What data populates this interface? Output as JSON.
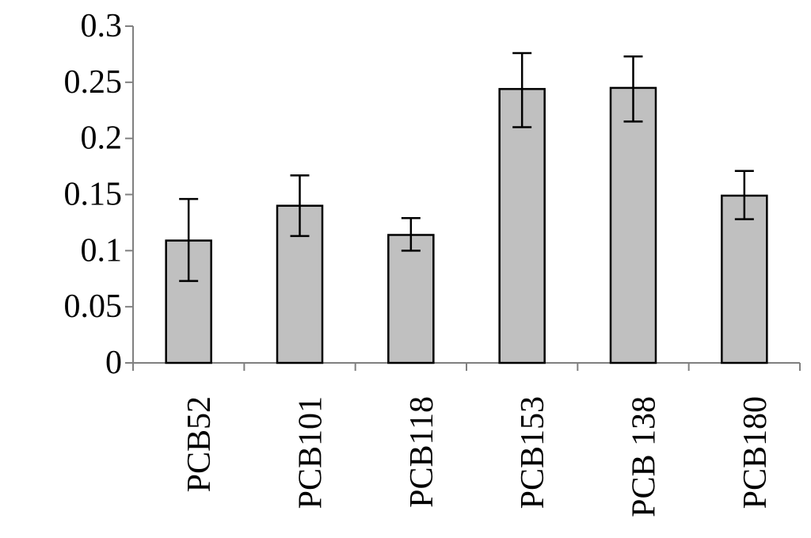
{
  "chart_data": {
    "type": "bar",
    "title": "",
    "xlabel": "",
    "ylabel": "",
    "categories": [
      "PCB52",
      "PCB101",
      "PCB118",
      "PCB153",
      "PCB 138",
      "PCB180"
    ],
    "values": [
      0.109,
      0.14,
      0.114,
      0.244,
      0.245,
      0.149
    ],
    "error_low": [
      0.073,
      0.113,
      0.1,
      0.21,
      0.215,
      0.128
    ],
    "error_high": [
      0.146,
      0.167,
      0.129,
      0.276,
      0.273,
      0.171
    ],
    "ylim": [
      0,
      0.3
    ],
    "yticks": [
      0,
      0.05,
      0.1,
      0.15,
      0.2,
      0.25,
      0.3
    ],
    "ytick_labels": [
      "0",
      "0.05",
      "0.1",
      "0.15",
      "0.2",
      "0.25",
      "0.3"
    ],
    "grid": false,
    "legend": "none",
    "colors": {
      "bar_fill": "#c0c0c0",
      "bar_stroke": "#000000",
      "axis": "#808080",
      "error_bar": "#000000"
    }
  }
}
